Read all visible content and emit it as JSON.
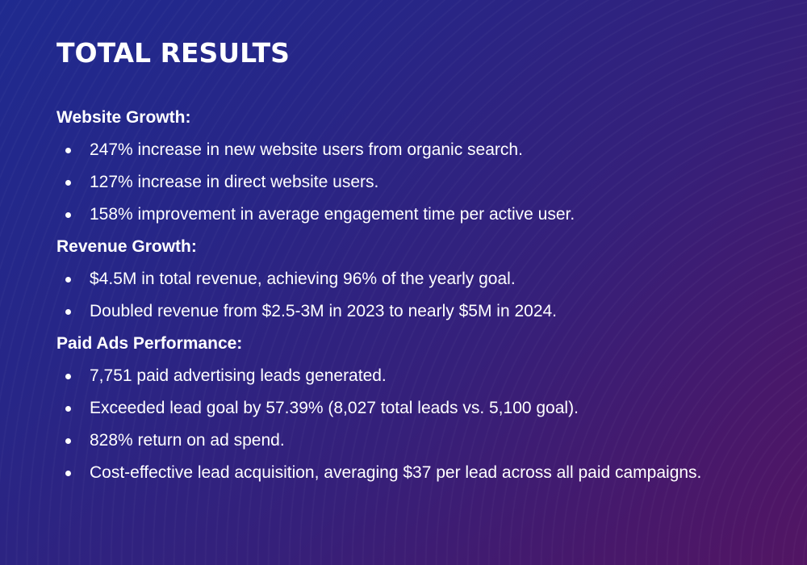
{
  "title": "TOTAL RESULTS",
  "sections": [
    {
      "heading": "Website Growth:",
      "items": [
        "247% increase in new website users from organic search.",
        "127% increase in direct website users.",
        "158% improvement in average engagement time per active user."
      ]
    },
    {
      "heading": "Revenue Growth:",
      "items": [
        "$4.5M in total revenue, achieving 96% of the yearly goal.",
        "Doubled revenue from $2.5-3M in 2023 to nearly $5M in 2024."
      ]
    },
    {
      "heading": "Paid Ads Performance:",
      "items": [
        "7,751 paid advertising leads generated.",
        "Exceeded lead goal by 57.39% (8,027 total leads vs. 5,100 goal).",
        "828% return on ad spend.",
        "Cost-effective lead acquisition, averaging $37 per lead across all paid campaigns."
      ]
    }
  ],
  "colors": {
    "background_start": "#1f2a8f",
    "background_end": "#521563",
    "text": "#ffffff"
  }
}
